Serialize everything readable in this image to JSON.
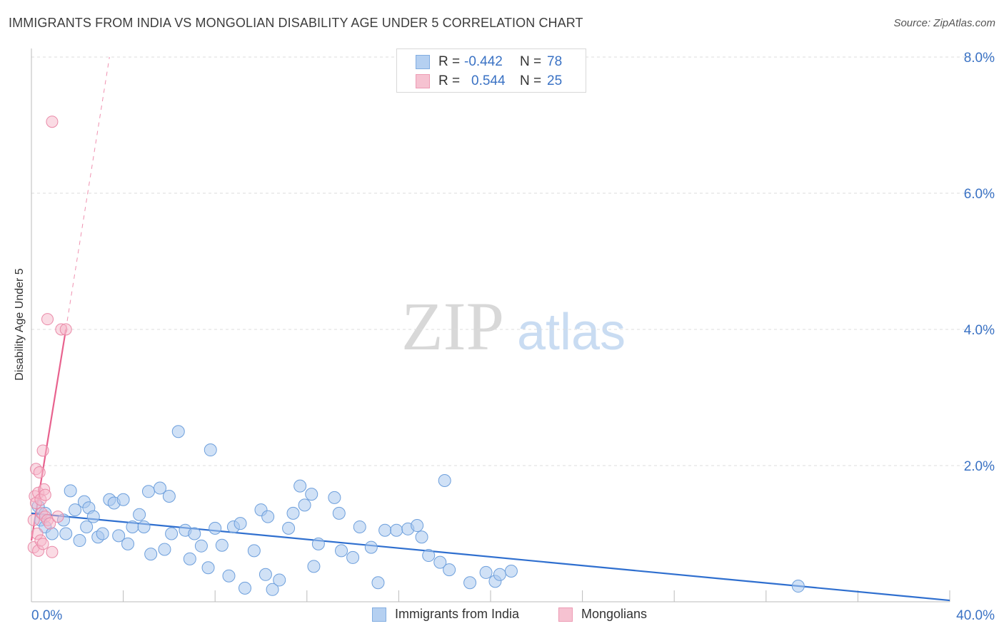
{
  "title": "IMMIGRANTS FROM INDIA VS MONGOLIAN DISABILITY AGE UNDER 5 CORRELATION CHART",
  "source": "Source: ZipAtlas.com",
  "watermark": {
    "zip": "ZIP",
    "atlas": "atlas"
  },
  "legend": {
    "rows": [
      {
        "r_label": "R =",
        "r_value": "-0.442",
        "n_label": "N =",
        "n_value": "78"
      },
      {
        "r_label": "R =",
        "r_value": "0.544",
        "n_label": "N =",
        "n_value": "25"
      }
    ]
  },
  "colors": {
    "blue_fill": "#a9c8ef",
    "blue_stroke": "#6d9fdc",
    "blue_line": "#2f6fcf",
    "pink_fill": "#f5b8ca",
    "pink_stroke": "#ea8aa8",
    "pink_line": "#e8628e",
    "grid": "#dcdcdc",
    "tick_label": "#3a72c4"
  },
  "chart_data": {
    "type": "scatter",
    "title": "IMMIGRANTS FROM INDIA VS MONGOLIAN DISABILITY AGE UNDER 5 CORRELATION CHART",
    "xlabel": "",
    "ylabel": "Disability Age Under 5",
    "xlim": [
      0,
      40
    ],
    "ylim": [
      0,
      8
    ],
    "x_tick_labels": [
      "0.0%",
      "40.0%"
    ],
    "y_ticks": [
      2,
      4,
      6,
      8
    ],
    "y_tick_labels": [
      "2.0%",
      "4.0%",
      "6.0%",
      "8.0%"
    ],
    "grid": true,
    "legend_position": "bottom-center",
    "series": [
      {
        "name": "Immigrants from India",
        "r": -0.442,
        "n": 78,
        "trend": {
          "x0": 0.0,
          "y0": 1.3,
          "x1": 40.0,
          "y1": 0.02
        },
        "points": [
          [
            0.3,
            1.4
          ],
          [
            0.4,
            1.2
          ],
          [
            0.6,
            1.1
          ],
          [
            0.9,
            1.0
          ],
          [
            1.4,
            1.2
          ],
          [
            1.5,
            1.0
          ],
          [
            1.7,
            1.63
          ],
          [
            1.9,
            1.35
          ],
          [
            2.1,
            0.9
          ],
          [
            2.3,
            1.47
          ],
          [
            2.5,
            1.38
          ],
          [
            2.7,
            1.25
          ],
          [
            2.9,
            0.95
          ],
          [
            3.1,
            1.0
          ],
          [
            3.4,
            1.5
          ],
          [
            3.6,
            1.45
          ],
          [
            3.8,
            0.97
          ],
          [
            4.0,
            1.5
          ],
          [
            4.2,
            0.85
          ],
          [
            4.4,
            1.1
          ],
          [
            4.7,
            1.28
          ],
          [
            4.9,
            1.1
          ],
          [
            5.1,
            1.62
          ],
          [
            5.2,
            0.7
          ],
          [
            5.6,
            1.67
          ],
          [
            5.8,
            0.77
          ],
          [
            6.0,
            1.55
          ],
          [
            6.1,
            1.0
          ],
          [
            6.4,
            2.5
          ],
          [
            6.7,
            1.05
          ],
          [
            6.9,
            0.63
          ],
          [
            7.1,
            1.0
          ],
          [
            7.4,
            0.82
          ],
          [
            7.7,
            0.5
          ],
          [
            7.8,
            2.23
          ],
          [
            8.0,
            1.08
          ],
          [
            8.3,
            0.83
          ],
          [
            8.6,
            0.38
          ],
          [
            8.8,
            1.1
          ],
          [
            9.1,
            1.15
          ],
          [
            9.3,
            0.2
          ],
          [
            9.7,
            0.75
          ],
          [
            10.0,
            1.35
          ],
          [
            10.2,
            0.4
          ],
          [
            10.3,
            1.25
          ],
          [
            10.5,
            0.18
          ],
          [
            10.8,
            0.32
          ],
          [
            11.2,
            1.08
          ],
          [
            11.4,
            1.3
          ],
          [
            11.7,
            1.7
          ],
          [
            11.9,
            1.42
          ],
          [
            12.2,
            1.58
          ],
          [
            12.3,
            0.52
          ],
          [
            12.5,
            0.85
          ],
          [
            13.2,
            1.53
          ],
          [
            13.4,
            1.3
          ],
          [
            13.5,
            0.75
          ],
          [
            14.0,
            0.65
          ],
          [
            14.3,
            1.1
          ],
          [
            14.8,
            0.8
          ],
          [
            15.1,
            0.28
          ],
          [
            15.4,
            1.05
          ],
          [
            15.9,
            1.05
          ],
          [
            16.4,
            1.07
          ],
          [
            16.8,
            1.12
          ],
          [
            17.0,
            0.95
          ],
          [
            17.3,
            0.68
          ],
          [
            17.8,
            0.58
          ],
          [
            18.0,
            1.78
          ],
          [
            18.2,
            0.47
          ],
          [
            19.1,
            0.28
          ],
          [
            19.8,
            0.43
          ],
          [
            20.2,
            0.3
          ],
          [
            20.4,
            0.4
          ],
          [
            20.9,
            0.45
          ],
          [
            33.4,
            0.23
          ],
          [
            0.6,
            1.3
          ],
          [
            2.4,
            1.1
          ]
        ]
      },
      {
        "name": "Mongolians",
        "r": 0.544,
        "n": 25,
        "trend": {
          "x0": 0.0,
          "y0": 0.9,
          "x1": 1.5,
          "y1": 4.0
        },
        "trend_extension": {
          "x0": 1.5,
          "y0": 4.0,
          "x1": 3.4,
          "y1": 8.0
        },
        "points": [
          [
            0.1,
            0.8
          ],
          [
            0.1,
            1.2
          ],
          [
            0.15,
            1.55
          ],
          [
            0.2,
            1.45
          ],
          [
            0.2,
            1.95
          ],
          [
            0.25,
            1.0
          ],
          [
            0.3,
            0.75
          ],
          [
            0.3,
            1.6
          ],
          [
            0.35,
            1.9
          ],
          [
            0.4,
            1.5
          ],
          [
            0.4,
            0.9
          ],
          [
            0.45,
            1.3
          ],
          [
            0.5,
            2.22
          ],
          [
            0.5,
            0.85
          ],
          [
            0.55,
            1.65
          ],
          [
            0.6,
            1.57
          ],
          [
            0.6,
            1.25
          ],
          [
            0.7,
            1.2
          ],
          [
            0.7,
            4.15
          ],
          [
            0.8,
            1.15
          ],
          [
            0.9,
            0.73
          ],
          [
            0.9,
            7.05
          ],
          [
            1.3,
            4.0
          ],
          [
            1.5,
            4.0
          ],
          [
            1.15,
            1.25
          ]
        ]
      }
    ]
  }
}
